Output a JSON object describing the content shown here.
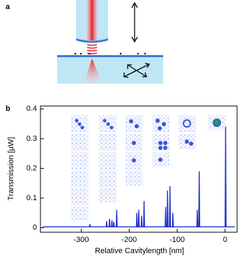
{
  "panels": [
    "a",
    "b"
  ],
  "chart_data": {
    "type": "line",
    "xlabel": "Relative Cavitylength [nm]",
    "ylabel": "Transmission [μW]",
    "series": [
      {
        "color": "#2233cc",
        "x": [
          -380,
          -283,
          -282,
          -281,
          -248,
          -247,
          -246,
          -242,
          -241,
          -240,
          -237,
          -236,
          -235,
          -233,
          -232,
          -231,
          -227,
          -226,
          -225,
          -185,
          -184,
          -183,
          -181,
          -180,
          -179,
          -175,
          -174,
          -173,
          -170,
          -169,
          -168,
          -125,
          -124,
          -123,
          -121,
          -120,
          -119,
          -116,
          -115,
          -114,
          -110,
          -109,
          -108,
          -59,
          -58,
          -57,
          -55,
          -54,
          -53,
          0,
          1,
          2,
          20
        ],
        "values": [
          0.003,
          0.003,
          0.012,
          0.003,
          0.003,
          0.022,
          0.003,
          0.003,
          0.03,
          0.003,
          0.003,
          0.025,
          0.003,
          0.003,
          0.02,
          0.003,
          0.003,
          0.06,
          0.003,
          0.003,
          0.05,
          0.003,
          0.003,
          0.06,
          0.003,
          0.003,
          0.04,
          0.003,
          0.003,
          0.09,
          0.003,
          0.003,
          0.07,
          0.003,
          0.003,
          0.125,
          0.003,
          0.003,
          0.14,
          0.003,
          0.003,
          0.05,
          0.003,
          0.003,
          0.06,
          0.003,
          0.003,
          0.19,
          0.003,
          0.003,
          0.34,
          0.003,
          0.003
        ]
      }
    ],
    "xlim": [
      -385,
      25
    ],
    "xticks": [
      -300,
      -200,
      -100,
      0
    ],
    "ylim": [
      -0.015,
      0.41
    ],
    "yticks": [
      0,
      0.1,
      0.2,
      0.3,
      0.4
    ]
  }
}
